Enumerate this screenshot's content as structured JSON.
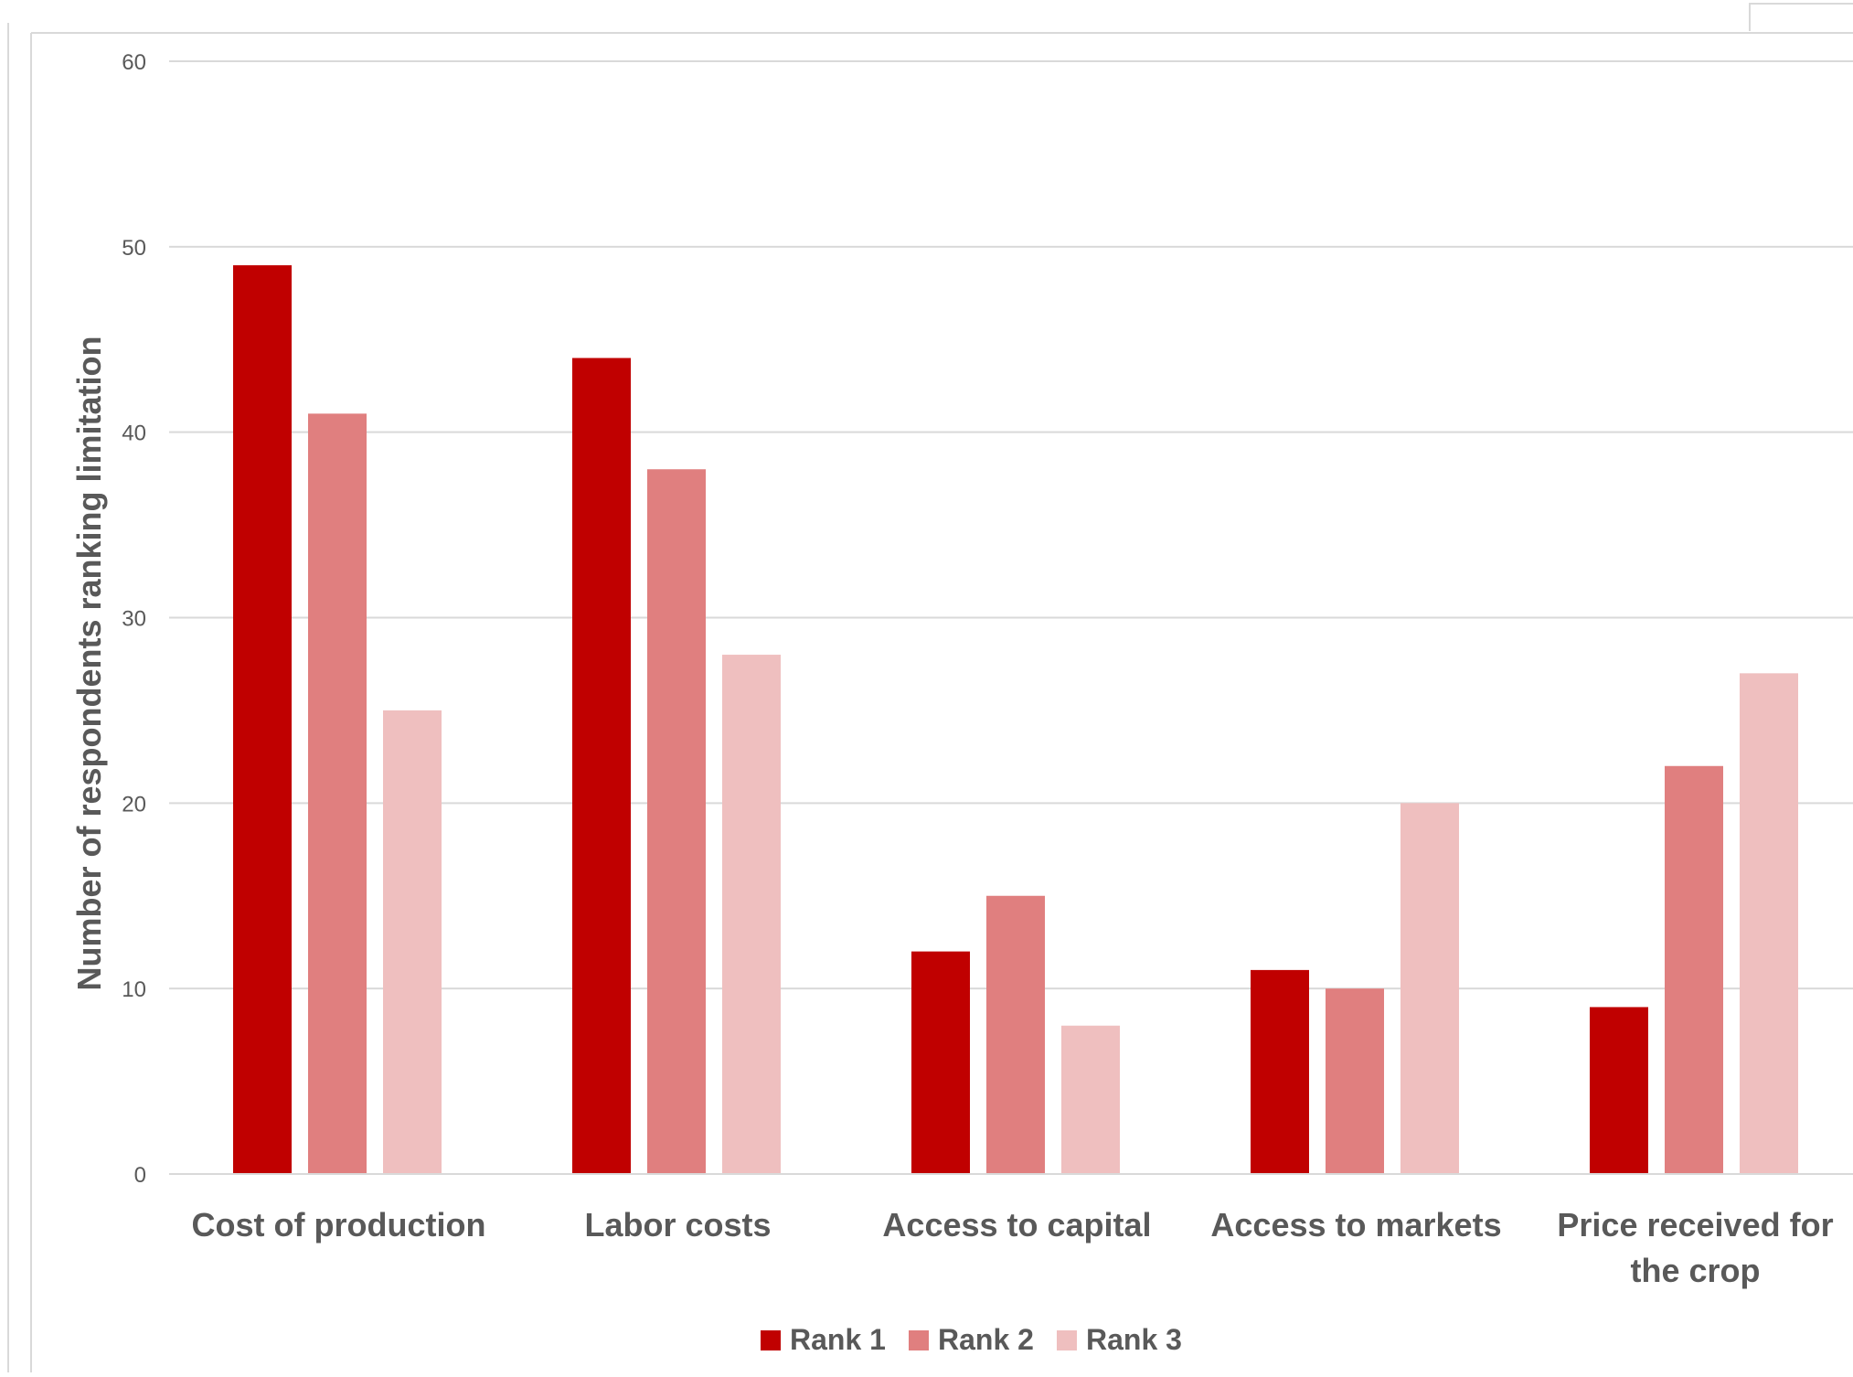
{
  "chart_data": {
    "type": "bar",
    "categories": [
      [
        "Cost of production"
      ],
      [
        "Labor costs"
      ],
      [
        "Access to capital"
      ],
      [
        "Access to markets"
      ],
      [
        "Price received for",
        "the crop"
      ]
    ],
    "series": [
      {
        "name": "Rank 1",
        "color": "#C00000",
        "values": [
          49,
          44,
          12,
          11,
          9
        ]
      },
      {
        "name": "Rank 2",
        "color": "#E07F7F",
        "values": [
          41,
          38,
          15,
          10,
          22
        ]
      },
      {
        "name": "Rank 3",
        "color": "#EFBFBF",
        "values": [
          25,
          28,
          8,
          20,
          27
        ]
      }
    ],
    "ylabel": "Number of respondents ranking limitation",
    "xlabel": "",
    "ylim": [
      0,
      60
    ],
    "yticks": [
      0,
      10,
      20,
      30,
      40,
      50,
      60
    ],
    "grid": true,
    "legend": "bottom",
    "colors": {
      "gridline": "#D9D9D9",
      "axis": "#D9D9D9",
      "text": "#595959",
      "frame": "#D9D9D9"
    }
  }
}
